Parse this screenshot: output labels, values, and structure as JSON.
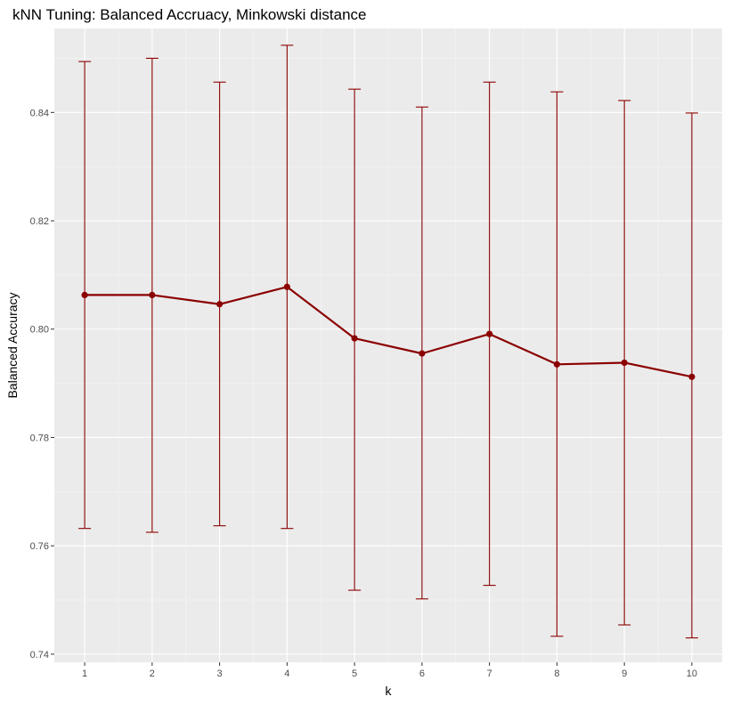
{
  "chart_data": {
    "type": "line",
    "title": "kNN Tuning: Balanced Accruacy, Minkowski distance",
    "xlabel": "k",
    "ylabel": "Balanced Accuracy",
    "x": [
      1,
      2,
      3,
      4,
      5,
      6,
      7,
      8,
      9,
      10
    ],
    "xticks": [
      "1",
      "2",
      "3",
      "4",
      "5",
      "6",
      "7",
      "8",
      "9",
      "10"
    ],
    "xlim": [
      0.55,
      10.45
    ],
    "ylim": [
      0.7385,
      0.8555
    ],
    "yticks": [
      0.74,
      0.76,
      0.78,
      0.8,
      0.82,
      0.84
    ],
    "ytick_labels": [
      "0.74",
      "0.76",
      "0.78",
      "0.80",
      "0.82",
      "0.84"
    ],
    "grid": true,
    "legend": "none",
    "colors": {
      "series": "#8b0000",
      "panel": "#ebebeb",
      "grid_major": "#ffffff",
      "grid_minor": "#f5f5f5"
    },
    "series": [
      {
        "values": [
          0.8063,
          0.8063,
          0.8046,
          0.8078,
          0.7983,
          0.7955,
          0.7991,
          0.7935,
          0.7938,
          0.7912
        ],
        "error_lower": [
          0.7632,
          0.7625,
          0.7637,
          0.7632,
          0.7518,
          0.7502,
          0.7527,
          0.7433,
          0.7454,
          0.743
        ],
        "error_upper": [
          0.8494,
          0.85,
          0.8456,
          0.8524,
          0.8443,
          0.841,
          0.8456,
          0.8438,
          0.8422,
          0.8399
        ]
      }
    ]
  }
}
